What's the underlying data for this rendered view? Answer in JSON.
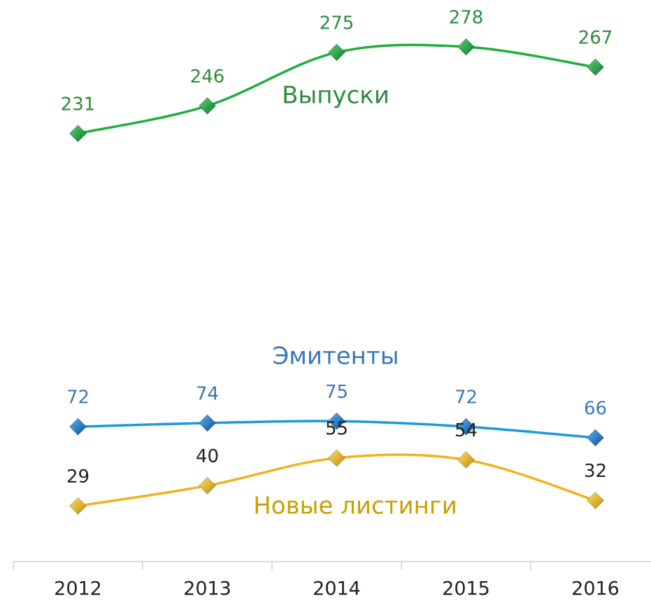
{
  "chart_data": {
    "type": "line",
    "categories": [
      "2012",
      "2013",
      "2014",
      "2015",
      "2016"
    ],
    "series": [
      {
        "name": "Выпуски",
        "color": "#1fae3c",
        "label_color": "#2e8b3e",
        "values": [
          231,
          246,
          275,
          278,
          267
        ]
      },
      {
        "name": "Эмитенты",
        "color": "#1a9ad8",
        "label_color": "#3a78b8",
        "values": [
          72,
          74,
          75,
          72,
          66
        ]
      },
      {
        "name": "Новые листинги",
        "color": "#f2b21e",
        "label_color": "#c9a000",
        "values": [
          29,
          40,
          55,
          54,
          32
        ]
      }
    ],
    "ylim": [
      0,
      300
    ]
  }
}
